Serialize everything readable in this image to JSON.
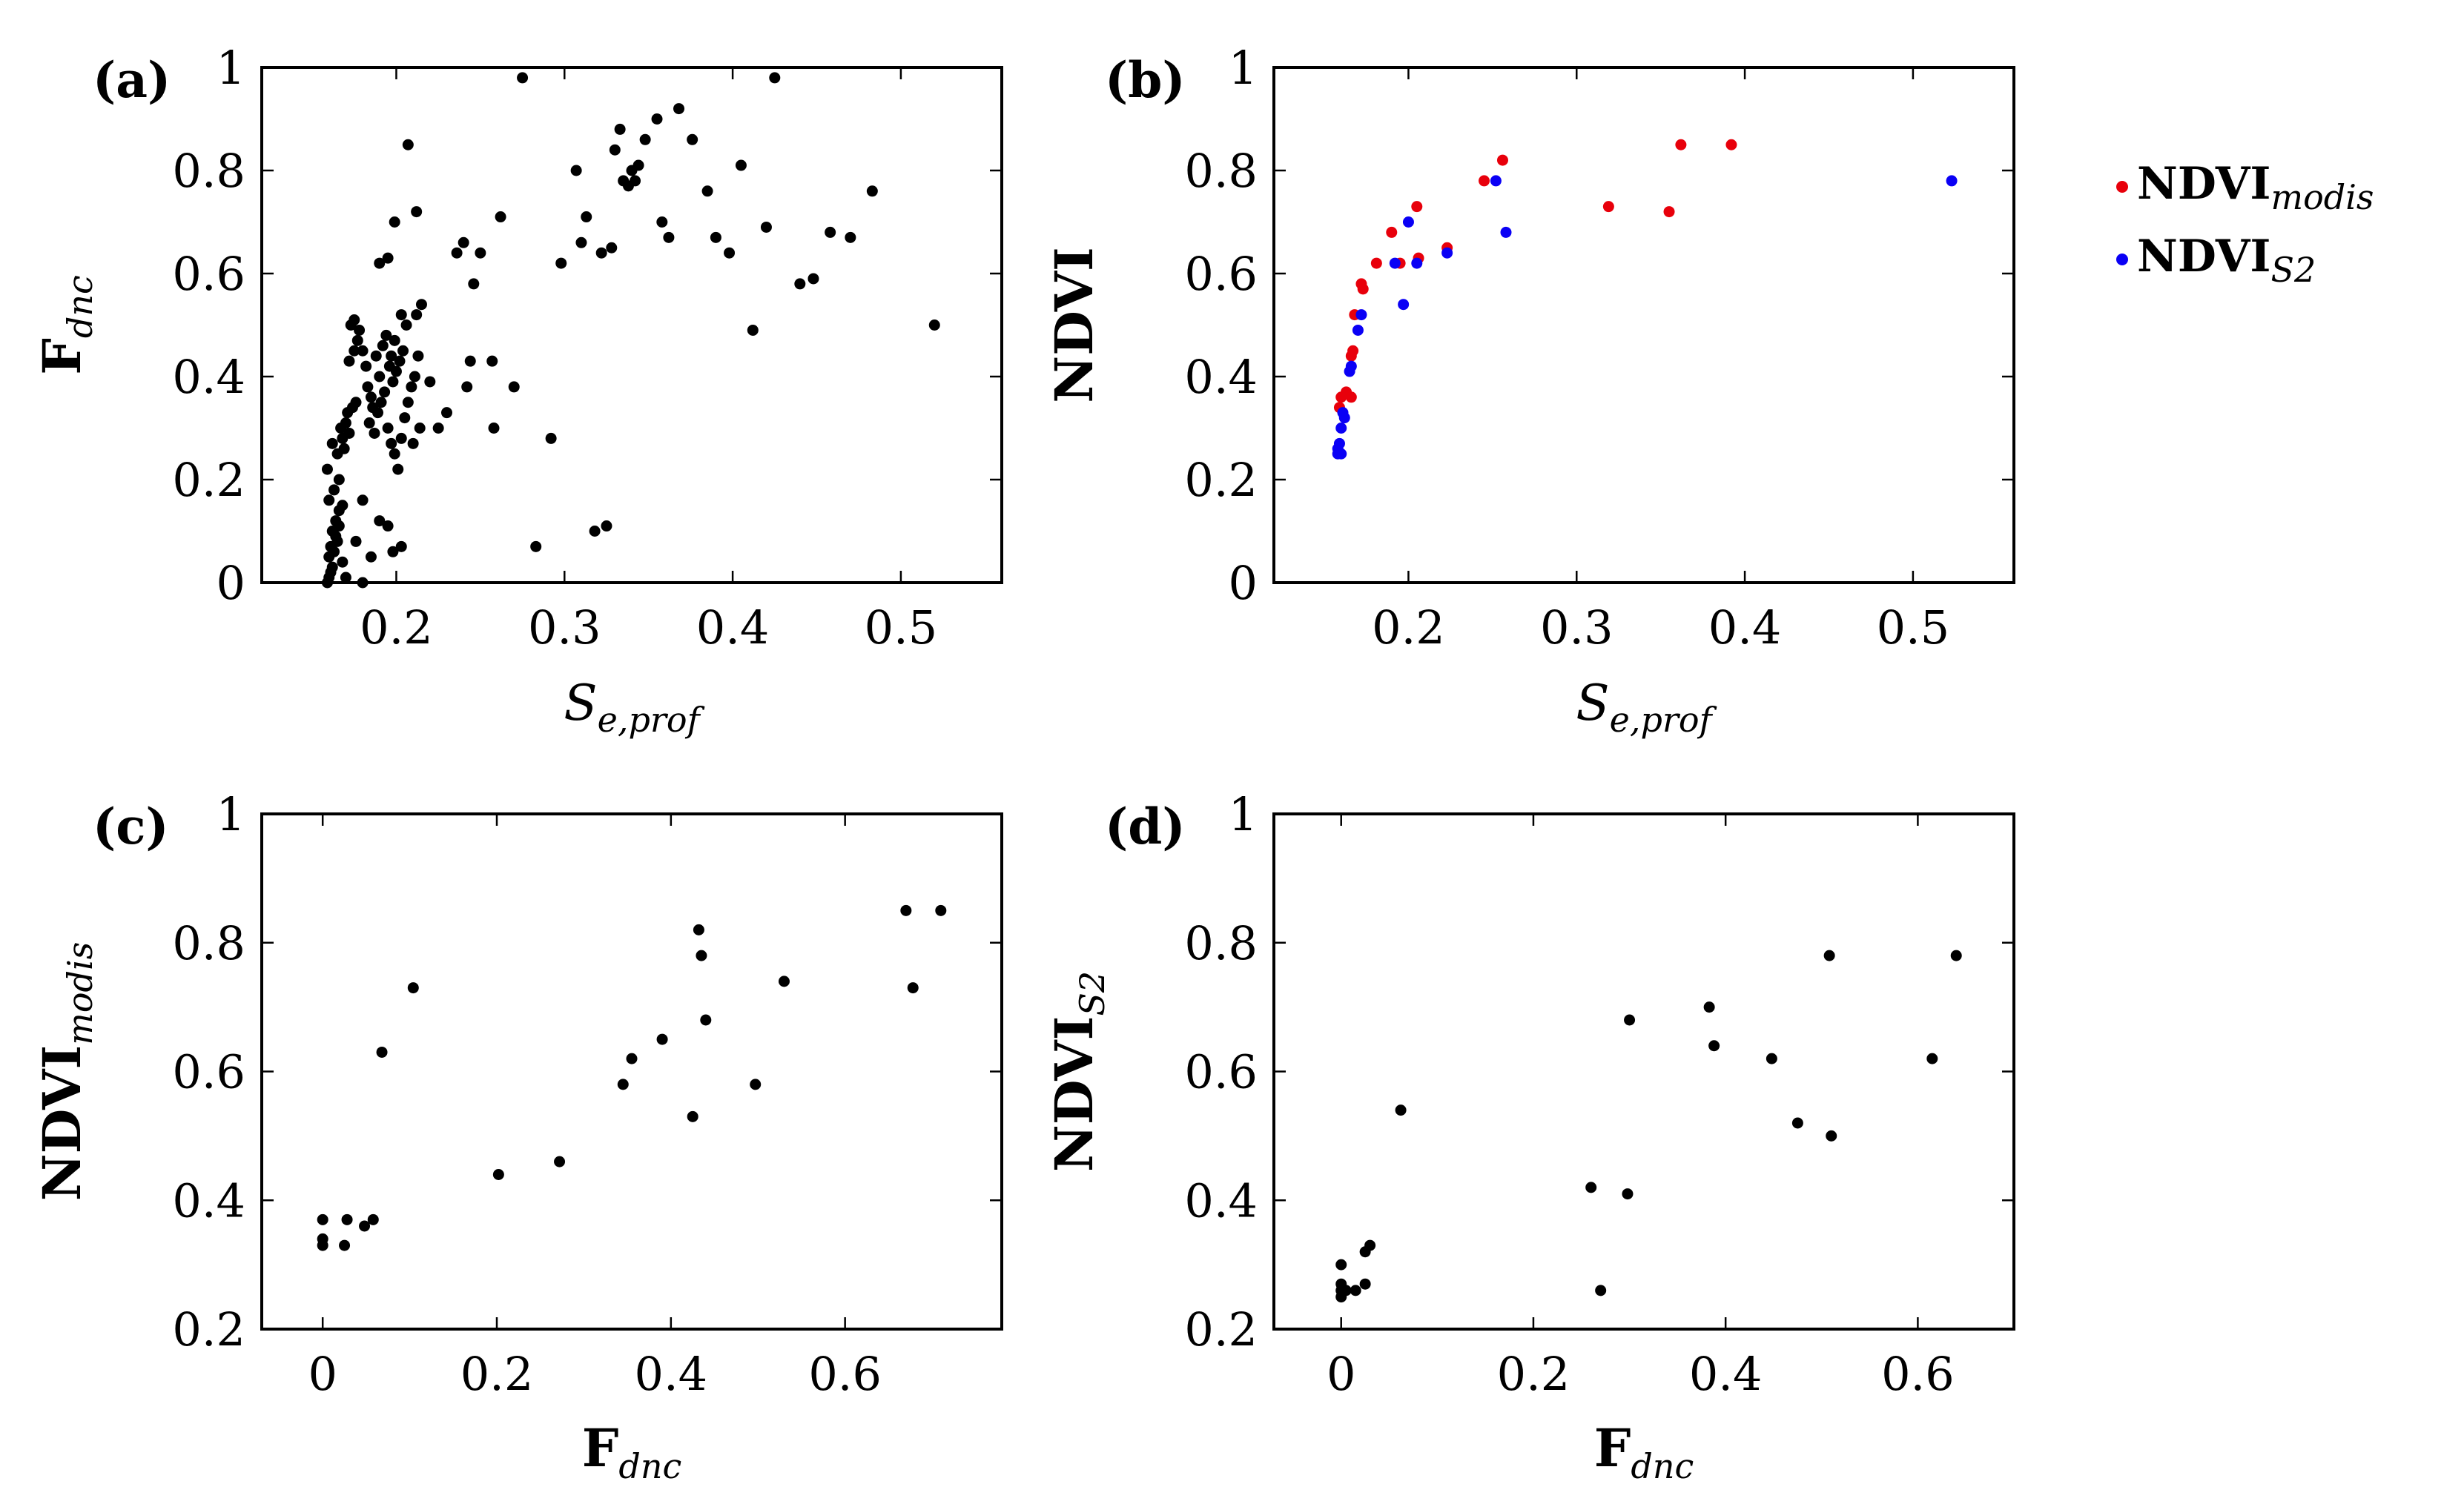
{
  "colors": {
    "modis": "#e8000b",
    "s2": "#0a00f5",
    "black": "#000000"
  },
  "legend": {
    "items": [
      {
        "name_main": "NDVI",
        "name_sub": "modis",
        "color": "#e8000b"
      },
      {
        "name_main": "NDVI",
        "name_sub": "S2",
        "color": "#0a00f5"
      }
    ]
  },
  "chart_data": [
    {
      "panel": "(a)",
      "type": "scatter",
      "xlabel_main": "S",
      "xlabel_sub": "e,prof",
      "xlabel_bold": false,
      "ylabel_main": "F",
      "ylabel_sub": "dnc",
      "xlim": [
        0.12,
        0.56
      ],
      "ylim": [
        0,
        1
      ],
      "xticks": [
        0.2,
        0.3,
        0.4,
        0.5
      ],
      "xtick_labels": [
        "0.2",
        "0.3",
        "0.4",
        "0.5"
      ],
      "yticks": [
        0,
        0.2,
        0.4,
        0.6,
        0.8,
        1
      ],
      "ytick_labels": [
        "0",
        "0.2",
        "0.4",
        "0.6",
        "0.8",
        "1"
      ],
      "series": [
        {
          "name": "F_dnc",
          "color": "#000000",
          "points": [
            [
              0.159,
              0.0
            ],
            [
              0.16,
              0.01
            ],
            [
              0.161,
              0.02
            ],
            [
              0.162,
              0.03
            ],
            [
              0.16,
              0.05
            ],
            [
              0.163,
              0.06
            ],
            [
              0.161,
              0.07
            ],
            [
              0.165,
              0.08
            ],
            [
              0.162,
              0.1
            ],
            [
              0.164,
              0.12
            ],
            [
              0.166,
              0.14
            ],
            [
              0.16,
              0.16
            ],
            [
              0.163,
              0.18
            ],
            [
              0.159,
              0.22
            ],
            [
              0.162,
              0.27
            ],
            [
              0.165,
              0.25
            ],
            [
              0.168,
              0.28
            ],
            [
              0.167,
              0.3
            ],
            [
              0.17,
              0.31
            ],
            [
              0.171,
              0.33
            ],
            [
              0.174,
              0.34
            ],
            [
              0.176,
              0.35
            ],
            [
              0.172,
              0.29
            ],
            [
              0.169,
              0.26
            ],
            [
              0.166,
              0.2
            ],
            [
              0.17,
              0.01
            ],
            [
              0.168,
              0.04
            ],
            [
              0.164,
              0.09
            ],
            [
              0.166,
              0.11
            ],
            [
              0.168,
              0.15
            ],
            [
              0.172,
              0.43
            ],
            [
              0.175,
              0.45
            ],
            [
              0.177,
              0.47
            ],
            [
              0.173,
              0.5
            ],
            [
              0.175,
              0.51
            ],
            [
              0.178,
              0.49
            ],
            [
              0.18,
              0.45
            ],
            [
              0.182,
              0.42
            ],
            [
              0.183,
              0.38
            ],
            [
              0.185,
              0.36
            ],
            [
              0.186,
              0.34
            ],
            [
              0.184,
              0.31
            ],
            [
              0.187,
              0.29
            ],
            [
              0.189,
              0.33
            ],
            [
              0.191,
              0.35
            ],
            [
              0.193,
              0.37
            ],
            [
              0.19,
              0.4
            ],
            [
              0.188,
              0.44
            ],
            [
              0.192,
              0.46
            ],
            [
              0.194,
              0.48
            ],
            [
              0.196,
              0.42
            ],
            [
              0.198,
              0.39
            ],
            [
              0.2,
              0.41
            ],
            [
              0.202,
              0.43
            ],
            [
              0.204,
              0.45
            ],
            [
              0.206,
              0.5
            ],
            [
              0.203,
              0.52
            ],
            [
              0.199,
              0.47
            ],
            [
              0.197,
              0.44
            ],
            [
              0.195,
              0.3
            ],
            [
              0.197,
              0.27
            ],
            [
              0.199,
              0.25
            ],
            [
              0.201,
              0.22
            ],
            [
              0.203,
              0.28
            ],
            [
              0.205,
              0.32
            ],
            [
              0.207,
              0.35
            ],
            [
              0.209,
              0.38
            ],
            [
              0.211,
              0.4
            ],
            [
              0.213,
              0.44
            ],
            [
              0.212,
              0.52
            ],
            [
              0.215,
              0.54
            ],
            [
              0.214,
              0.3
            ],
            [
              0.21,
              0.27
            ],
            [
              0.185,
              0.05
            ],
            [
              0.19,
              0.12
            ],
            [
              0.195,
              0.11
            ],
            [
              0.198,
              0.06
            ],
            [
              0.203,
              0.07
            ],
            [
              0.176,
              0.08
            ],
            [
              0.18,
              0.16
            ],
            [
              0.18,
              0.0
            ],
            [
              0.19,
              0.62
            ],
            [
              0.195,
              0.63
            ],
            [
              0.199,
              0.7
            ],
            [
              0.207,
              0.85
            ],
            [
              0.212,
              0.72
            ],
            [
              0.22,
              0.39
            ],
            [
              0.225,
              0.3
            ],
            [
              0.23,
              0.33
            ],
            [
              0.236,
              0.64
            ],
            [
              0.24,
              0.66
            ],
            [
              0.242,
              0.38
            ],
            [
              0.244,
              0.43
            ],
            [
              0.246,
              0.58
            ],
            [
              0.25,
              0.64
            ],
            [
              0.257,
              0.43
            ],
            [
              0.258,
              0.3
            ],
            [
              0.262,
              0.71
            ],
            [
              0.27,
              0.38
            ],
            [
              0.275,
              0.98
            ],
            [
              0.283,
              0.07
            ],
            [
              0.292,
              0.28
            ],
            [
              0.298,
              0.62
            ],
            [
              0.307,
              0.8
            ],
            [
              0.31,
              0.66
            ],
            [
              0.313,
              0.71
            ],
            [
              0.318,
              0.1
            ],
            [
              0.322,
              0.64
            ],
            [
              0.325,
              0.11
            ],
            [
              0.328,
              0.65
            ],
            [
              0.33,
              0.84
            ],
            [
              0.333,
              0.88
            ],
            [
              0.335,
              0.78
            ],
            [
              0.338,
              0.77
            ],
            [
              0.34,
              0.8
            ],
            [
              0.342,
              0.78
            ],
            [
              0.344,
              0.81
            ],
            [
              0.348,
              0.86
            ],
            [
              0.355,
              0.9
            ],
            [
              0.358,
              0.7
            ],
            [
              0.362,
              0.67
            ],
            [
              0.368,
              0.92
            ],
            [
              0.376,
              0.86
            ],
            [
              0.385,
              0.76
            ],
            [
              0.39,
              0.67
            ],
            [
              0.398,
              0.64
            ],
            [
              0.405,
              0.81
            ],
            [
              0.412,
              0.49
            ],
            [
              0.42,
              0.69
            ],
            [
              0.425,
              0.98
            ],
            [
              0.44,
              0.58
            ],
            [
              0.448,
              0.59
            ],
            [
              0.458,
              0.68
            ],
            [
              0.47,
              0.67
            ],
            [
              0.483,
              0.76
            ],
            [
              0.52,
              0.5
            ]
          ]
        }
      ]
    },
    {
      "panel": "(b)",
      "type": "scatter",
      "xlabel_main": "S",
      "xlabel_sub": "e,prof",
      "xlabel_bold": false,
      "ylabel_main": "NDVI",
      "ylabel_sub": "",
      "xlim": [
        0.12,
        0.56
      ],
      "ylim": [
        0,
        1
      ],
      "xticks": [
        0.2,
        0.3,
        0.4,
        0.5
      ],
      "xtick_labels": [
        "0.2",
        "0.3",
        "0.4",
        "0.5"
      ],
      "yticks": [
        0,
        0.2,
        0.4,
        0.6,
        0.8,
        1
      ],
      "ytick_labels": [
        "0",
        "0.2",
        "0.4",
        "0.6",
        "0.8",
        "1"
      ],
      "series": [
        {
          "name": "NDVI_modis",
          "color": "#e8000b",
          "points": [
            [
              0.159,
              0.34
            ],
            [
              0.16,
              0.36
            ],
            [
              0.163,
              0.37
            ],
            [
              0.166,
              0.36
            ],
            [
              0.166,
              0.44
            ],
            [
              0.167,
              0.45
            ],
            [
              0.168,
              0.52
            ],
            [
              0.172,
              0.58
            ],
            [
              0.173,
              0.57
            ],
            [
              0.181,
              0.62
            ],
            [
              0.19,
              0.68
            ],
            [
              0.195,
              0.62
            ],
            [
              0.205,
              0.73
            ],
            [
              0.206,
              0.63
            ],
            [
              0.223,
              0.65
            ],
            [
              0.245,
              0.78
            ],
            [
              0.256,
              0.82
            ],
            [
              0.319,
              0.73
            ],
            [
              0.355,
              0.72
            ],
            [
              0.362,
              0.85
            ],
            [
              0.392,
              0.85
            ]
          ]
        },
        {
          "name": "NDVI_S2",
          "color": "#0a00f5",
          "points": [
            [
              0.158,
              0.25
            ],
            [
              0.158,
              0.26
            ],
            [
              0.159,
              0.27
            ],
            [
              0.16,
              0.3
            ],
            [
              0.161,
              0.33
            ],
            [
              0.162,
              0.32
            ],
            [
              0.16,
              0.25
            ],
            [
              0.165,
              0.41
            ],
            [
              0.166,
              0.42
            ],
            [
              0.17,
              0.49
            ],
            [
              0.172,
              0.52
            ],
            [
              0.192,
              0.62
            ],
            [
              0.197,
              0.54
            ],
            [
              0.2,
              0.7
            ],
            [
              0.205,
              0.62
            ],
            [
              0.223,
              0.64
            ],
            [
              0.252,
              0.78
            ],
            [
              0.258,
              0.68
            ],
            [
              0.523,
              0.78
            ]
          ]
        }
      ]
    },
    {
      "panel": "(c)",
      "type": "scatter",
      "xlabel_main": "F",
      "xlabel_sub": "dnc",
      "xlabel_bold": true,
      "ylabel_main": "NDVI",
      "ylabel_sub": "modis",
      "xlim": [
        -0.07,
        0.78
      ],
      "ylim": [
        0.2,
        1
      ],
      "xticks": [
        0,
        0.2,
        0.4,
        0.6
      ],
      "xtick_labels": [
        "0",
        "0.2",
        "0.4",
        "0.6"
      ],
      "yticks": [
        0.2,
        0.4,
        0.6,
        0.8,
        1
      ],
      "ytick_labels": [
        "0.2",
        "0.4",
        "0.6",
        "0.8",
        "1"
      ],
      "series": [
        {
          "name": "NDVI_modis vs F_dnc",
          "color": "#000000",
          "points": [
            [
              0.0,
              0.34
            ],
            [
              0.0,
              0.33
            ],
            [
              0.0,
              0.37
            ],
            [
              0.025,
              0.33
            ],
            [
              0.028,
              0.37
            ],
            [
              0.048,
              0.36
            ],
            [
              0.058,
              0.37
            ],
            [
              0.068,
              0.63
            ],
            [
              0.104,
              0.73
            ],
            [
              0.202,
              0.44
            ],
            [
              0.272,
              0.46
            ],
            [
              0.345,
              0.58
            ],
            [
              0.355,
              0.62
            ],
            [
              0.39,
              0.65
            ],
            [
              0.425,
              0.53
            ],
            [
              0.432,
              0.82
            ],
            [
              0.435,
              0.78
            ],
            [
              0.44,
              0.68
            ],
            [
              0.497,
              0.58
            ],
            [
              0.53,
              0.74
            ],
            [
              0.67,
              0.85
            ],
            [
              0.678,
              0.73
            ],
            [
              0.71,
              0.85
            ]
          ]
        }
      ]
    },
    {
      "panel": "(d)",
      "type": "scatter",
      "xlabel_main": "F",
      "xlabel_sub": "dnc",
      "xlabel_bold": true,
      "ylabel_main": "NDVI",
      "ylabel_sub": "S2",
      "xlim": [
        -0.07,
        0.7
      ],
      "ylim": [
        0.2,
        1
      ],
      "xticks": [
        0,
        0.2,
        0.4,
        0.6
      ],
      "xtick_labels": [
        "0",
        "0.2",
        "0.4",
        "0.6"
      ],
      "yticks": [
        0.2,
        0.4,
        0.6,
        0.8,
        1
      ],
      "ytick_labels": [
        "0.2",
        "0.4",
        "0.6",
        "0.8",
        "1"
      ],
      "series": [
        {
          "name": "NDVI_S2 vs F_dnc",
          "color": "#000000",
          "points": [
            [
              0.0,
              0.25
            ],
            [
              0.0,
              0.26
            ],
            [
              0.0,
              0.27
            ],
            [
              0.0,
              0.3
            ],
            [
              0.005,
              0.26
            ],
            [
              0.015,
              0.26
            ],
            [
              0.025,
              0.27
            ],
            [
              0.025,
              0.32
            ],
            [
              0.03,
              0.33
            ],
            [
              0.062,
              0.54
            ],
            [
              0.26,
              0.42
            ],
            [
              0.27,
              0.26
            ],
            [
              0.298,
              0.41
            ],
            [
              0.3,
              0.68
            ],
            [
              0.383,
              0.7
            ],
            [
              0.388,
              0.64
            ],
            [
              0.448,
              0.62
            ],
            [
              0.475,
              0.52
            ],
            [
              0.508,
              0.78
            ],
            [
              0.51,
              0.5
            ],
            [
              0.615,
              0.62
            ],
            [
              0.64,
              0.78
            ]
          ]
        }
      ]
    }
  ]
}
